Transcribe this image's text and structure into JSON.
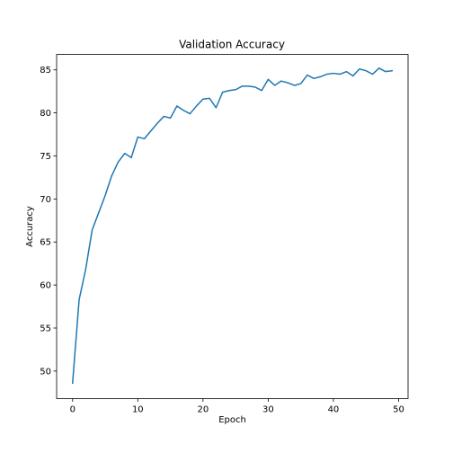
{
  "chart_data": {
    "type": "line",
    "title": "Validation Accuracy",
    "xlabel": "Epoch",
    "ylabel": "Accuracy",
    "xlim": [
      -2.45,
      51.45
    ],
    "ylim": [
      46.8,
      86.8
    ],
    "xticks": [
      0,
      10,
      20,
      30,
      40,
      50
    ],
    "yticks": [
      50,
      55,
      60,
      65,
      70,
      75,
      80,
      85
    ],
    "grid": false,
    "series": [
      {
        "color": "#1f77b4",
        "x": [
          0,
          1,
          2,
          3,
          4,
          5,
          6,
          7,
          8,
          9,
          10,
          11,
          12,
          13,
          14,
          15,
          16,
          17,
          18,
          19,
          20,
          21,
          22,
          23,
          24,
          25,
          26,
          27,
          28,
          29,
          30,
          31,
          32,
          33,
          34,
          35,
          36,
          37,
          38,
          39,
          40,
          41,
          42,
          43,
          44,
          45,
          46,
          47,
          48,
          49
        ],
        "y": [
          48.6,
          58.3,
          61.8,
          66.4,
          68.4,
          70.4,
          72.7,
          74.3,
          75.3,
          74.8,
          77.2,
          77.0,
          77.9,
          78.8,
          79.6,
          79.4,
          80.8,
          80.3,
          79.9,
          80.8,
          81.6,
          81.7,
          80.6,
          82.4,
          82.6,
          82.7,
          83.1,
          83.1,
          83.0,
          82.6,
          83.9,
          83.2,
          83.7,
          83.5,
          83.2,
          83.4,
          84.4,
          84.0,
          84.2,
          84.5,
          84.6,
          84.5,
          84.8,
          84.3,
          85.1,
          84.9,
          84.5,
          85.2,
          84.8,
          84.9
        ]
      }
    ]
  }
}
